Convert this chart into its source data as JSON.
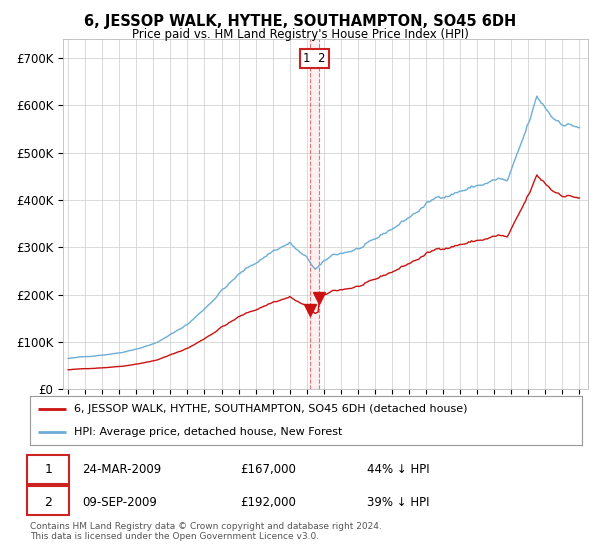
{
  "title": "6, JESSOP WALK, HYTHE, SOUTHAMPTON, SO45 6DH",
  "subtitle": "Price paid vs. HM Land Registry's House Price Index (HPI)",
  "yticks": [
    0,
    100000,
    200000,
    300000,
    400000,
    500000,
    600000,
    700000
  ],
  "ytick_labels": [
    "£0",
    "£100K",
    "£200K",
    "£300K",
    "£400K",
    "£500K",
    "£600K",
    "£700K"
  ],
  "xlim_start": 1994.7,
  "xlim_end": 2025.5,
  "ylim": [
    0,
    740000
  ],
  "hpi_color": "#6dadd6",
  "price_color": "#cc1111",
  "marker_color": "#cc1111",
  "vline_color": "#dd4444",
  "legend_label_price": "6, JESSOP WALK, HYTHE, SOUTHAMPTON, SO45 6DH (detached house)",
  "legend_label_hpi": "HPI: Average price, detached house, New Forest",
  "transaction_1_date": "24-MAR-2009",
  "transaction_1_price": "£167,000",
  "transaction_1_hpi": "44% ↓ HPI",
  "transaction_2_date": "09-SEP-2009",
  "transaction_2_price": "£192,000",
  "transaction_2_hpi": "39% ↓ HPI",
  "footer": "Contains HM Land Registry data © Crown copyright and database right 2024.\nThis data is licensed under the Open Government Licence v3.0.",
  "vline1_x": 2009.22,
  "vline2_x": 2009.69,
  "marker1_x": 2009.22,
  "marker1_y": 167000,
  "marker2_x": 2009.69,
  "marker2_y": 192000,
  "background_color": "#ffffff",
  "plot_background": "#ffffff",
  "grid_color": "#cccccc"
}
